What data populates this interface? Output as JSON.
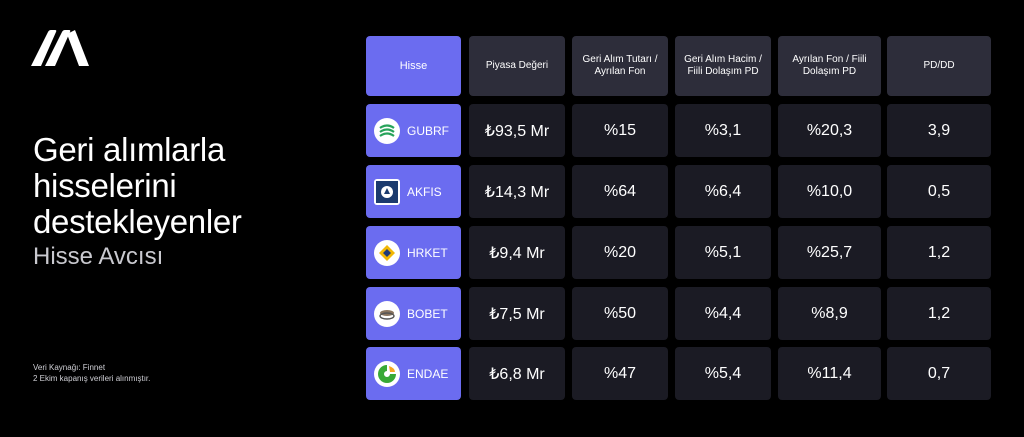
{
  "header": {
    "title": "Geri alımlarla hisselerini destekleyenler",
    "subtitle": "Hisse Avcısı"
  },
  "source": {
    "line1": "Veri Kaynağı: Finnet",
    "line2": "2 Ekim kapanış verileri alınmıştır."
  },
  "table": {
    "columns": [
      "Hisse",
      "Piyasa Değeri",
      "Geri Alım Tutarı / Ayrılan Fon",
      "Geri Alım Hacim / Fiili Dolaşım PD",
      "Ayrılan Fon / Fiili Dolaşım PD",
      "PD/DD"
    ],
    "rows": [
      {
        "ticker": "GUBRF",
        "icon": "gubre-fabrikalari-logo-icon",
        "values": [
          "₺93,5 Mr",
          "%15",
          "%3,1",
          "%20,3",
          "3,9"
        ]
      },
      {
        "ticker": "AKFIS",
        "icon": "akfen-insaat-logo-icon",
        "values": [
          "₺14,3 Mr",
          "%64",
          "%6,4",
          "%10,0",
          "0,5"
        ]
      },
      {
        "ticker": "HRKET",
        "icon": "hareket-logo-icon",
        "values": [
          "₺9,4 Mr",
          "%20",
          "%5,1",
          "%25,7",
          "1,2"
        ]
      },
      {
        "ticker": "BOBET",
        "icon": "bogazici-beton-logo-icon",
        "values": [
          "₺7,5 Mr",
          "%50",
          "%4,4",
          "%8,9",
          "1,2"
        ]
      },
      {
        "ticker": "ENDAE",
        "icon": "enda-enerji-logo-icon",
        "values": [
          "₺6,8 Mr",
          "%47",
          "%5,4",
          "%11,4",
          "0,7"
        ]
      }
    ]
  },
  "colors": {
    "accent": "#6b6cf0",
    "header_cell": "#2d2d3a",
    "value_cell": "#1b1b24",
    "background": "#000000"
  }
}
